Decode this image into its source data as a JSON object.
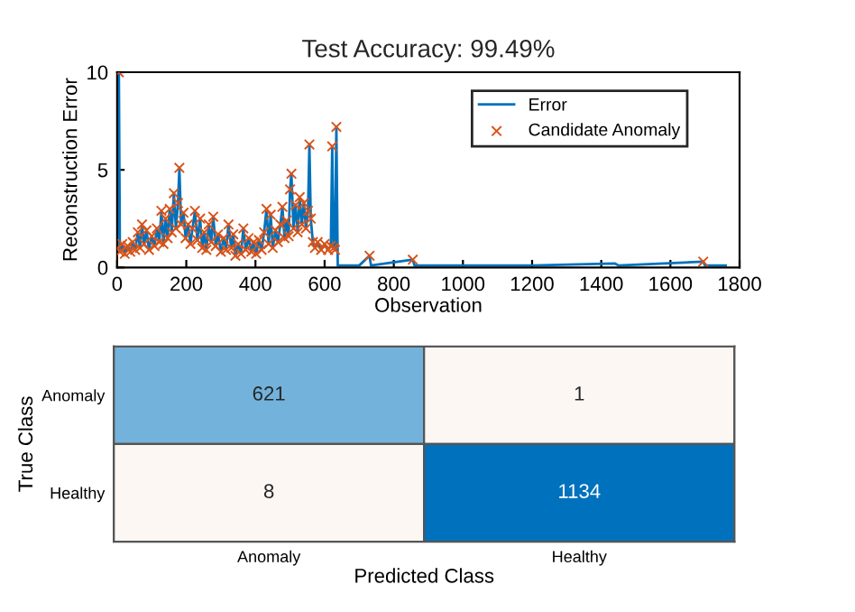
{
  "chart_data": [
    {
      "type": "line",
      "title": "Test Accuracy: 99.49%",
      "xlabel": "Observation",
      "ylabel": "Reconstruction Error",
      "xlim": [
        0,
        1800
      ],
      "xticks": [
        0,
        200,
        400,
        600,
        800,
        1000,
        1200,
        1400,
        1600,
        1800
      ],
      "ylim": [
        0,
        10
      ],
      "yticks": [
        0,
        5,
        10
      ],
      "grid": false,
      "legend": "top right",
      "series": [
        {
          "name": "Error",
          "type": "line",
          "color": "#0072bd",
          "marker": "none",
          "line_style": "solid",
          "x": [
            0,
            5,
            8,
            15,
            22,
            30,
            38,
            45,
            52,
            60,
            66,
            72,
            78,
            85,
            92,
            100,
            108,
            115,
            122,
            128,
            134,
            140,
            146,
            152,
            158,
            164,
            170,
            176,
            180,
            185,
            192,
            198,
            205,
            212,
            218,
            225,
            232,
            240,
            246,
            252,
            258,
            265,
            272,
            278,
            285,
            292,
            300,
            308,
            315,
            322,
            330,
            336,
            342,
            350,
            358,
            365,
            372,
            380,
            388,
            395,
            402,
            410,
            418,
            425,
            432,
            438,
            444,
            450,
            458,
            465,
            472,
            478,
            484,
            490,
            496,
            500,
            504,
            510,
            516,
            522,
            528,
            534,
            540,
            546,
            552,
            556,
            560,
            566,
            572,
            580,
            590,
            600,
            610,
            618,
            622,
            626,
            630,
            634,
            638,
            700,
            730,
            734,
            855,
            860,
            1000,
            1200,
            1440,
            1450,
            1695,
            1700,
            1760
          ],
          "values": [
            1.0,
            10.0,
            0.8,
            1.2,
            0.7,
            1.1,
            0.8,
            1.3,
            0.9,
            1.8,
            1.0,
            2.2,
            1.2,
            1.9,
            0.9,
            1.6,
            1.1,
            2.0,
            1.3,
            2.9,
            1.2,
            2.5,
            1.5,
            3.0,
            1.8,
            3.8,
            2.0,
            3.3,
            5.1,
            2.2,
            2.8,
            1.5,
            2.2,
            1.2,
            2.0,
            2.9,
            1.4,
            2.5,
            1.0,
            1.8,
            0.9,
            2.2,
            1.3,
            2.6,
            1.1,
            1.7,
            0.8,
            1.5,
            0.9,
            2.2,
            1.0,
            1.7,
            0.6,
            1.2,
            0.7,
            2.0,
            0.9,
            1.5,
            0.8,
            1.3,
            0.7,
            1.4,
            0.9,
            1.8,
            3.0,
            1.2,
            2.7,
            1.0,
            1.9,
            1.3,
            2.2,
            3.1,
            1.5,
            2.4,
            1.6,
            4.0,
            4.8,
            2.0,
            3.2,
            1.8,
            3.6,
            2.2,
            3.3,
            2.0,
            2.9,
            6.3,
            2.5,
            1.3,
            1.0,
            1.3,
            0.9,
            1.2,
            0.9,
            1.1,
            6.2,
            1.0,
            0.9,
            7.2,
            0.1,
            0.1,
            0.6,
            0.1,
            0.4,
            0.1,
            0.1,
            0.1,
            0.2,
            0.1,
            0.3,
            0.1,
            0.1
          ]
        },
        {
          "name": "Candidate Anomaly",
          "type": "scatter",
          "color": "#d95319",
          "marker": "cross",
          "x": [
            0,
            5,
            8,
            15,
            22,
            30,
            38,
            45,
            52,
            60,
            66,
            72,
            78,
            85,
            92,
            100,
            108,
            115,
            122,
            128,
            134,
            140,
            146,
            152,
            158,
            164,
            170,
            176,
            180,
            185,
            192,
            198,
            205,
            212,
            218,
            225,
            232,
            240,
            246,
            252,
            258,
            265,
            272,
            278,
            285,
            292,
            300,
            308,
            315,
            322,
            330,
            336,
            342,
            350,
            358,
            365,
            372,
            380,
            388,
            395,
            402,
            410,
            418,
            425,
            432,
            438,
            444,
            450,
            458,
            465,
            472,
            478,
            484,
            490,
            496,
            500,
            504,
            510,
            516,
            522,
            528,
            534,
            540,
            546,
            552,
            556,
            560,
            566,
            572,
            580,
            590,
            600,
            610,
            618,
            622,
            626,
            630,
            634,
            730,
            855,
            1695
          ],
          "values": [
            1.0,
            10.0,
            0.8,
            1.2,
            0.7,
            1.1,
            0.8,
            1.3,
            0.9,
            1.8,
            1.0,
            2.2,
            1.2,
            1.9,
            0.9,
            1.6,
            1.1,
            2.0,
            1.3,
            2.9,
            1.2,
            2.5,
            1.5,
            3.0,
            1.8,
            3.8,
            2.0,
            3.3,
            5.1,
            2.2,
            2.8,
            1.5,
            2.2,
            1.2,
            2.0,
            2.9,
            1.4,
            2.5,
            1.0,
            1.8,
            0.9,
            2.2,
            1.3,
            2.6,
            1.1,
            1.7,
            0.8,
            1.5,
            0.9,
            2.2,
            1.0,
            1.7,
            0.6,
            1.2,
            0.7,
            2.0,
            0.9,
            1.5,
            0.8,
            1.3,
            0.7,
            1.4,
            0.9,
            1.8,
            3.0,
            1.2,
            2.7,
            1.0,
            1.9,
            1.3,
            2.2,
            3.1,
            1.5,
            2.4,
            1.6,
            4.0,
            4.8,
            2.0,
            3.2,
            1.8,
            3.6,
            2.2,
            3.3,
            2.0,
            2.9,
            6.3,
            2.5,
            1.3,
            1.0,
            1.3,
            0.9,
            1.2,
            0.9,
            1.1,
            6.2,
            1.0,
            0.9,
            7.2,
            0.6,
            0.4,
            0.3
          ]
        }
      ]
    },
    {
      "type": "heatmap",
      "xlabel": "Predicted Class",
      "ylabel": "True Class",
      "categories": [
        "Anomaly",
        "Healthy"
      ],
      "y_categories": [
        "Anomaly",
        "Healthy"
      ],
      "cells": [
        [
          621,
          1
        ],
        [
          8,
          1134
        ]
      ],
      "data_labels": true
    }
  ]
}
